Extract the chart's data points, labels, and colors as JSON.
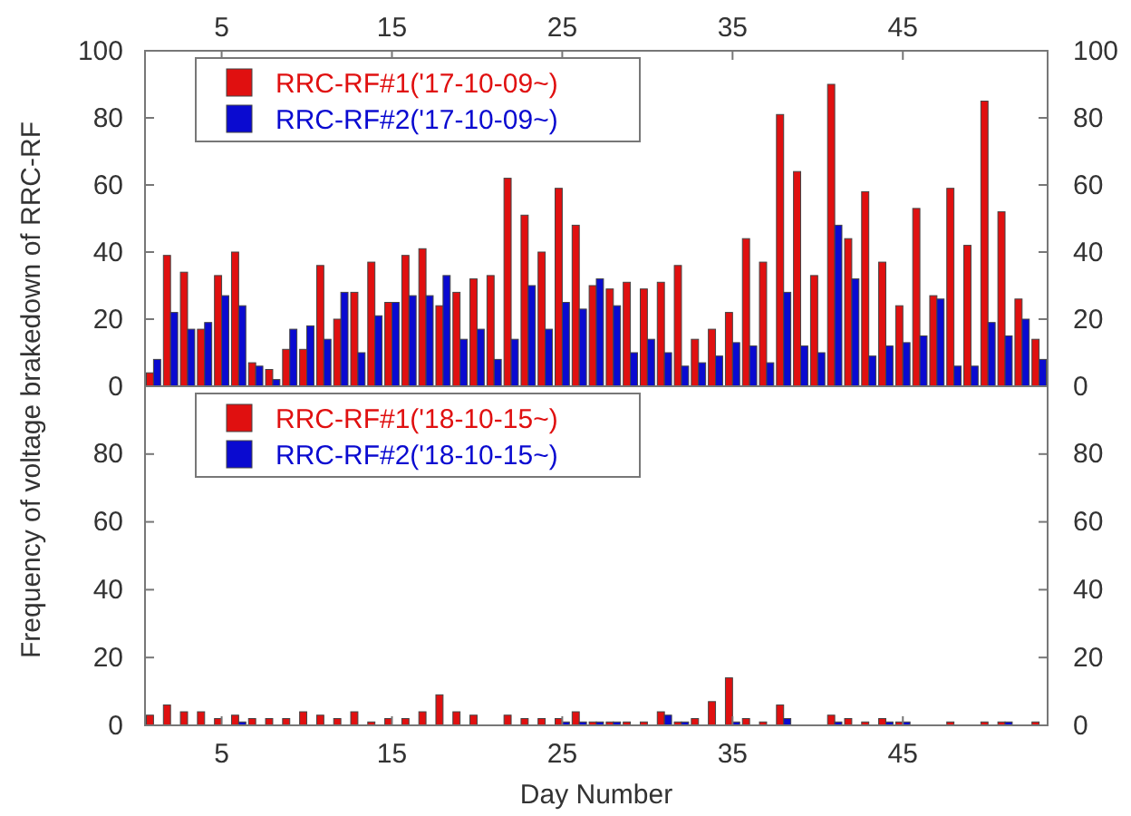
{
  "chart_data": [
    {
      "type": "bar",
      "ylabel": "Frequency of voltage brakedown of RRC-RF",
      "x": [
        1,
        2,
        3,
        4,
        5,
        6,
        7,
        8,
        9,
        10,
        11,
        12,
        13,
        14,
        15,
        16,
        17,
        18,
        19,
        20,
        21,
        22,
        23,
        24,
        25,
        26,
        27,
        28,
        29,
        30,
        31,
        32,
        33,
        34,
        35,
        36,
        37,
        38,
        39,
        40,
        41,
        42,
        43,
        44,
        45,
        46,
        47,
        48,
        49,
        50,
        51,
        52,
        53
      ],
      "xlim": [
        0.5,
        53.5
      ],
      "x2lim": [
        0.5,
        53.5
      ],
      "x2ticks": [
        5,
        15,
        25,
        35,
        45
      ],
      "ylim": [
        0,
        100
      ],
      "yticks": [
        0,
        20,
        40,
        60,
        80,
        100
      ],
      "y2lim": [
        0,
        100
      ],
      "y2ticks": [
        0,
        20,
        40,
        60,
        80,
        100
      ],
      "legend": "top left",
      "series": [
        {
          "name": "RRC-RF#1('17-10-09~)",
          "color": "#e01010",
          "values": [
            4,
            39,
            34,
            17,
            33,
            40,
            7,
            5,
            11,
            11,
            36,
            20,
            28,
            37,
            25,
            39,
            41,
            24,
            28,
            32,
            33,
            62,
            51,
            40,
            59,
            48,
            30,
            29,
            31,
            29,
            31,
            36,
            14,
            17,
            22,
            44,
            37,
            81,
            64,
            33,
            90,
            44,
            58,
            37,
            24,
            53,
            27,
            59,
            42,
            85,
            52,
            26,
            14
          ]
        },
        {
          "name": "RRC-RF#2('17-10-09~)",
          "color": "#0a0ad0",
          "values": [
            8,
            22,
            17,
            19,
            27,
            24,
            6,
            2,
            17,
            18,
            14,
            28,
            10,
            21,
            25,
            27,
            27,
            33,
            14,
            17,
            8,
            14,
            30,
            17,
            25,
            23,
            32,
            24,
            10,
            14,
            10,
            6,
            7,
            9,
            13,
            12,
            7,
            28,
            12,
            10,
            48,
            32,
            9,
            12,
            13,
            15,
            26,
            6,
            6,
            19,
            15,
            20,
            8
          ]
        }
      ]
    },
    {
      "type": "bar",
      "xlabel": "Day Number",
      "x": [
        1,
        2,
        3,
        4,
        5,
        6,
        7,
        8,
        9,
        10,
        11,
        12,
        13,
        14,
        15,
        16,
        17,
        18,
        19,
        20,
        21,
        22,
        23,
        24,
        25,
        26,
        27,
        28,
        29,
        30,
        31,
        32,
        33,
        34,
        35,
        36,
        37,
        38,
        39,
        40,
        41,
        42,
        43,
        44,
        45,
        46,
        47,
        48,
        49,
        50,
        51,
        52,
        53
      ],
      "xlim": [
        0.5,
        53.5
      ],
      "xticks": [
        5,
        15,
        25,
        35,
        45
      ],
      "ylim": [
        0,
        100
      ],
      "yticks": [
        0,
        20,
        40,
        60,
        80,
        {
          "value": 100,
          "label": null
        }
      ],
      "y2lim": [
        0,
        100
      ],
      "y2ticks": [
        0,
        20,
        40,
        60,
        80,
        {
          "value": 100,
          "label": null
        }
      ],
      "legend": "top left",
      "series": [
        {
          "name": "RRC-RF#1('18-10-15~)",
          "color": "#e01010",
          "values": [
            3,
            6,
            4,
            4,
            2,
            3,
            2,
            2,
            2,
            4,
            3,
            2,
            4,
            1,
            2,
            2,
            4,
            9,
            4,
            3,
            0,
            3,
            2,
            2,
            2,
            4,
            1,
            1,
            1,
            1,
            4,
            1,
            2,
            7,
            14,
            2,
            1,
            6,
            0,
            0,
            3,
            2,
            1,
            2,
            1,
            0,
            0,
            1,
            0,
            1,
            1,
            0,
            1
          ]
        },
        {
          "name": "RRC-RF#2('18-10-15~)",
          "color": "#0a0ad0",
          "values": [
            0,
            0,
            0,
            0,
            0,
            1,
            0,
            0,
            0,
            0,
            0,
            0,
            0,
            0,
            0,
            0,
            0,
            0,
            0,
            0,
            0,
            0,
            0,
            0,
            1,
            1,
            1,
            1,
            0,
            0,
            3,
            1,
            0,
            0,
            1,
            0,
            0,
            2,
            0,
            0,
            1,
            0,
            0,
            1,
            1,
            0,
            0,
            0,
            0,
            0,
            1,
            0,
            0
          ]
        }
      ]
    }
  ]
}
